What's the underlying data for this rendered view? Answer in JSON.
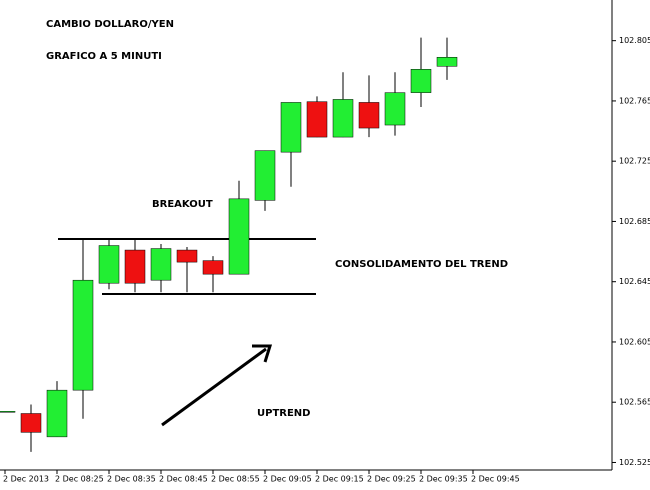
{
  "chart_data": {
    "type": "candlestick",
    "title": "CAMBIO DOLLARO/YEN",
    "subtitle": "GRAFICO A 5 MINUTI",
    "annotations": [
      "BREAKOUT",
      "CONSOLIDAMENTO DEL TREND",
      "UPTREND"
    ],
    "categories": [
      "2 Dec 2013",
      null,
      "2 Dec 08:25",
      null,
      "2 Dec 08:35",
      null,
      "2 Dec 08:45",
      null,
      "2 Dec 08:55",
      null,
      "2 Dec 09:05",
      null,
      "2 Dec 09:15",
      null,
      "2 Dec 09:25",
      null,
      "2 Dec 09:35",
      null,
      "2 Dec 09:45"
    ],
    "open": [
      102.559,
      102.5575,
      102.542,
      102.573,
      102.644,
      102.666,
      102.646,
      102.666,
      102.659,
      102.65,
      102.699,
      102.731,
      102.7645,
      102.741,
      102.764,
      102.749,
      102.7705,
      102.788,
      null
    ],
    "high": [
      102.559,
      102.5635,
      102.579,
      102.673,
      102.673,
      102.673,
      102.67,
      102.668,
      102.662,
      102.712,
      102.732,
      102.764,
      102.768,
      102.784,
      102.782,
      102.784,
      102.807,
      102.807,
      null
    ],
    "low": [
      102.559,
      102.532,
      102.542,
      102.554,
      102.64,
      102.638,
      102.638,
      102.638,
      102.638,
      102.65,
      102.692,
      102.708,
      102.741,
      102.741,
      102.741,
      102.742,
      102.761,
      102.779,
      null
    ],
    "close": [
      102.559,
      102.545,
      102.573,
      102.646,
      102.669,
      102.644,
      102.667,
      102.658,
      102.65,
      102.7,
      102.732,
      102.764,
      102.741,
      102.766,
      102.747,
      102.7705,
      102.786,
      102.794,
      null
    ],
    "up_color": "#22ee33",
    "down_color": "#ee1111",
    "ylim": [
      102.52,
      102.832
    ],
    "yticks": [
      102.525,
      102.565,
      102.605,
      102.645,
      102.685,
      102.725,
      102.765,
      102.805
    ]
  }
}
